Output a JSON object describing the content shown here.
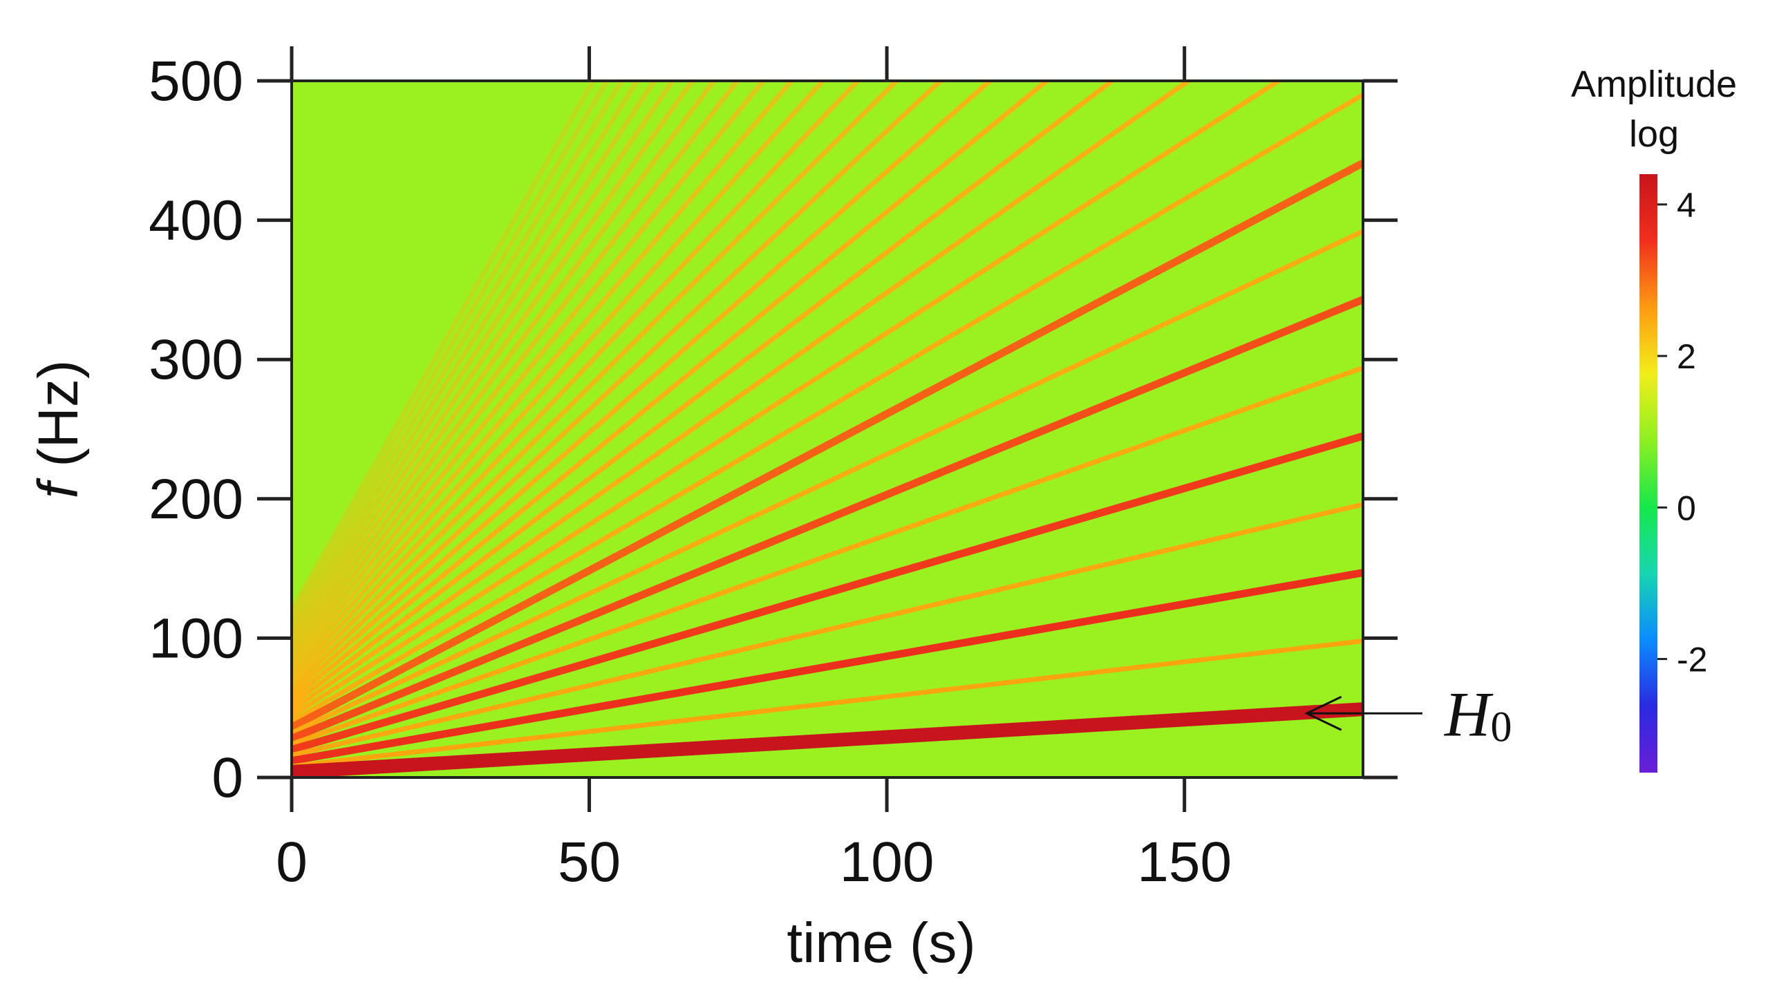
{
  "chart_data": {
    "type": "heatmap",
    "subtype": "spectrogram",
    "xlabel": "time (s)",
    "ylabel_italic": "f",
    "ylabel_rest": " (Hz)",
    "xlim": [
      0,
      180
    ],
    "ylim": [
      0,
      500
    ],
    "xticks": [
      0,
      50,
      100,
      150
    ],
    "yticks": [
      0,
      100,
      200,
      300,
      400,
      500
    ],
    "fundamental": {
      "description": "linear chirp, frequency at t=0 and t=180",
      "f_start": 4,
      "f_end": 49,
      "label_main": "H",
      "label_sub": "0",
      "annotation_time": 168
    },
    "harmonics": {
      "count": 30,
      "strong": [
        1,
        3,
        5,
        7,
        9
      ],
      "note": "harmonic k has frequency k × fundamental"
    },
    "background_level": 1.0,
    "colorbar": {
      "title_line1": "Amplitude",
      "title_line2": "log",
      "range": [
        -3.5,
        4.4
      ],
      "ticks": [
        4,
        2,
        0,
        -2
      ],
      "colors": [
        "#6a1fd8",
        "#2a2ae0",
        "#0a8cff",
        "#17d6b0",
        "#16e84a",
        "#8ef020",
        "#f2ee1a",
        "#ff9a10",
        "#f0301c",
        "#c8141c"
      ]
    },
    "grid": false,
    "legend": "none"
  }
}
